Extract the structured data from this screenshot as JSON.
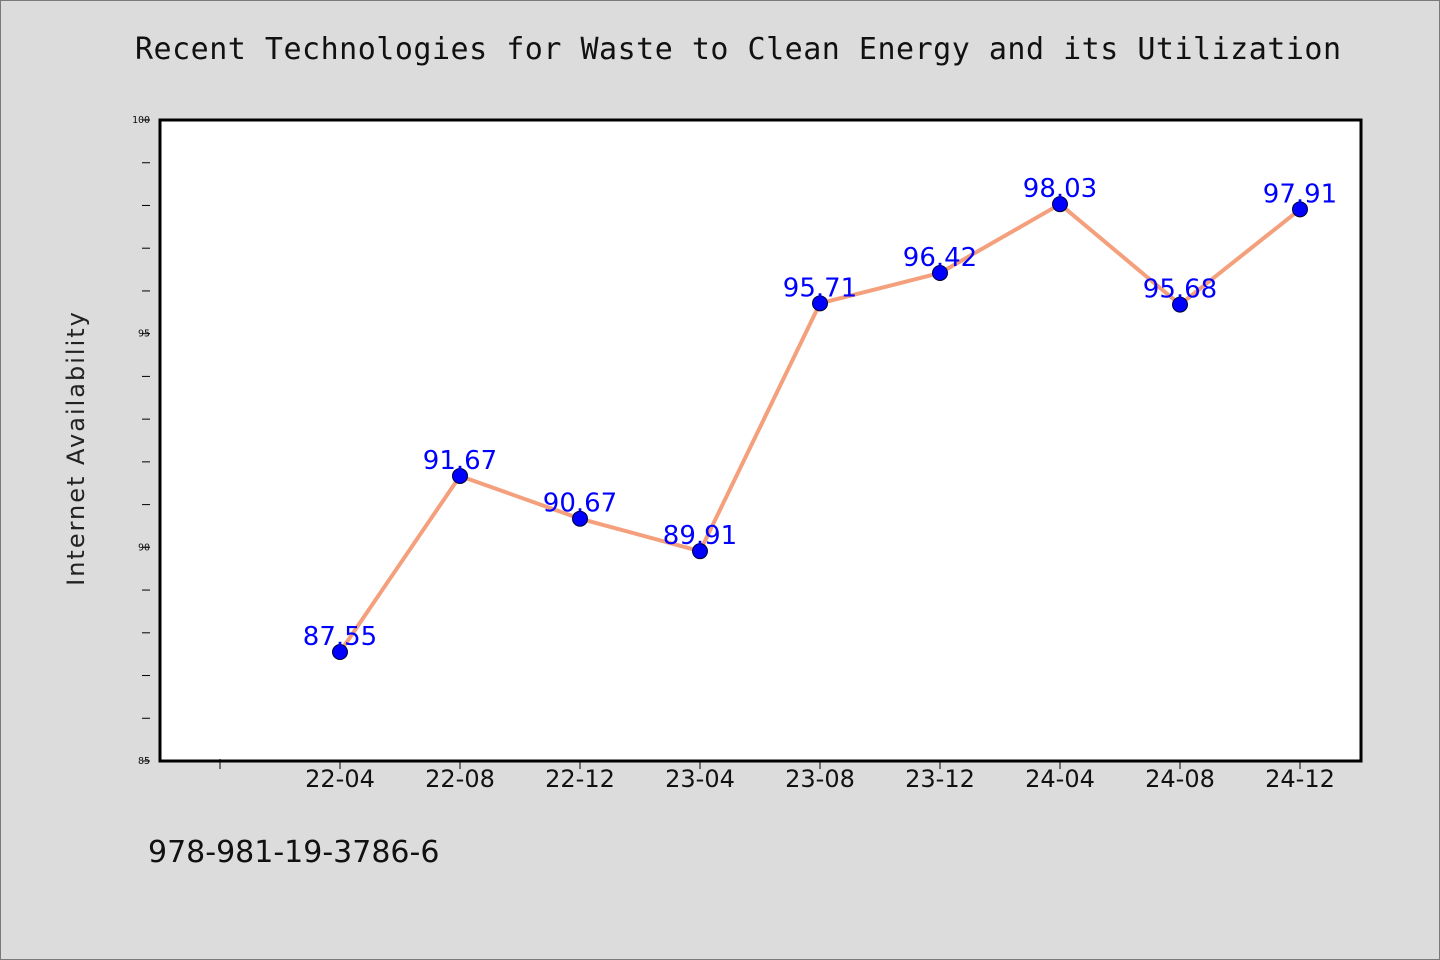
{
  "chart_data": {
    "type": "line",
    "title": "Recent Technologies for Waste to Clean Energy and its Utilization",
    "xlabel": "",
    "ylabel": "Internet Availability",
    "categories": [
      "22-04",
      "22-08",
      "22-12",
      "23-04",
      "23-08",
      "23-12",
      "24-04",
      "24-08",
      "24-12"
    ],
    "values": [
      87.55,
      91.67,
      90.67,
      89.91,
      95.71,
      96.42,
      98.03,
      95.68,
      97.91
    ],
    "data_labels": [
      "87.55",
      "91.67",
      "90.67",
      "89.91",
      "95.71",
      "96.42",
      "98.03",
      "95.68",
      "97.91"
    ],
    "ylim": [
      85,
      100
    ],
    "yticks": [
      85,
      90,
      95,
      100
    ],
    "yticks_labels": [
      "85",
      "90",
      "95",
      "100"
    ],
    "grid": false,
    "legend": null,
    "colors": {
      "line": "#f4a07c",
      "marker": "#0000ff",
      "data_label": "#0000ff",
      "background": "#dcdcdc",
      "plot_background": "#ffffff"
    }
  },
  "footer": {
    "text": "978-981-19-3786-6"
  }
}
